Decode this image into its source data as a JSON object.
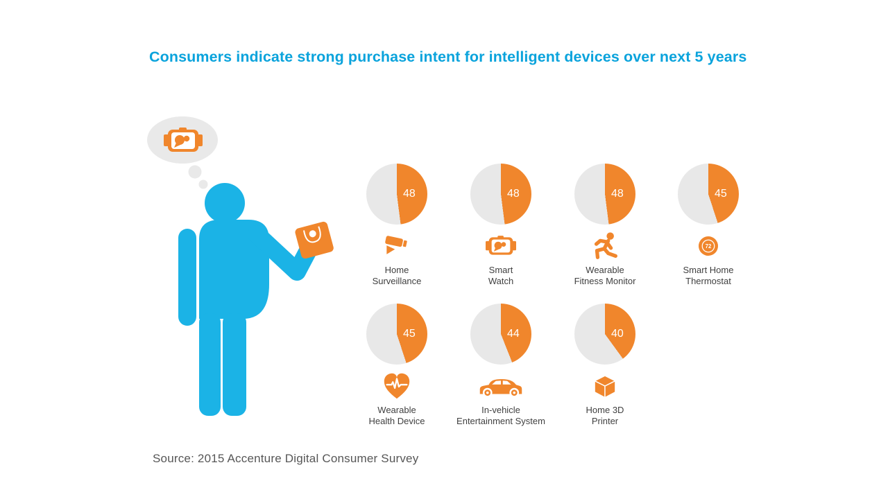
{
  "title": {
    "text": "Consumers indicate strong purchase intent for intelligent devices over next 5 years"
  },
  "source": {
    "text": "Source: 2015 Accenture Digital Consumer Survey"
  },
  "colors": {
    "title_blue": "#0aa3dc",
    "person_blue": "#1bb3e6",
    "accent_orange": "#f0862c",
    "pie_remainder_gray": "#e8e8e8",
    "thought_bubble_gray": "#e9e9e9",
    "label_gray": "#3f3f3f",
    "source_gray": "#565656",
    "pie_value_text": "#ffffff"
  },
  "figure": {
    "person": "consumer-silhouette",
    "thought_icon": "smartwatch-icon",
    "handheld_device": "tablet-device"
  },
  "chart_data": {
    "type": "pie",
    "unit": "percent",
    "title": "Consumers indicate strong purchase intent for intelligent devices over next 5 years",
    "pie_style": {
      "start_angle_deg": 0,
      "direction": "clockwise",
      "filled_color": "#f0862c",
      "remainder_color": "#e8e8e8",
      "value_label_position": "inside-right"
    },
    "categories": [
      "Home Surveillance",
      "Smart Watch",
      "Wearable Fitness Monitor",
      "Smart Home Thermostat",
      "Wearable Health Device",
      "In-vehicle Entertainment System",
      "Home 3D Printer"
    ],
    "values": [
      48,
      48,
      48,
      45,
      45,
      44,
      40
    ],
    "series": [
      {
        "label": "Home Surveillance",
        "label_lines": "Home\nSurveillance",
        "value": 48,
        "icon": "surveillance-camera-icon",
        "row": 1
      },
      {
        "label": "Smart Watch",
        "label_lines": "Smart\nWatch",
        "value": 48,
        "icon": "smartwatch-icon",
        "row": 1
      },
      {
        "label": "Wearable Fitness Monitor",
        "label_lines": "Wearable\nFitness Monitor",
        "value": 48,
        "icon": "runner-icon",
        "row": 1
      },
      {
        "label": "Smart Home Thermostat",
        "label_lines": "Smart Home\nThermostat",
        "value": 45,
        "icon": "thermostat-icon",
        "icon_text": "72",
        "row": 1
      },
      {
        "label": "Wearable Health Device",
        "label_lines": "Wearable\nHealth Device",
        "value": 45,
        "icon": "heart-pulse-icon",
        "row": 2
      },
      {
        "label": "In-vehicle Entertainment System",
        "label_lines": "In-vehicle\nEntertainment System",
        "value": 44,
        "icon": "car-icon",
        "row": 2
      },
      {
        "label": "Home 3D Printer",
        "label_lines": "Home 3D\nPrinter",
        "value": 40,
        "icon": "cube-icon",
        "row": 2
      }
    ]
  }
}
